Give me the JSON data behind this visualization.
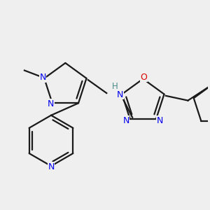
{
  "bg_color": "#efefef",
  "bond_color": "#1a1a1a",
  "n_color": "#0000ee",
  "o_color": "#dd0000",
  "c_color": "#1a1a1a",
  "h_color": "#4a8a8a",
  "lw": 1.6,
  "figsize": [
    3.0,
    3.0
  ],
  "dpi": 100,
  "xlim": [
    20,
    280
  ],
  "ylim": [
    30,
    270
  ]
}
